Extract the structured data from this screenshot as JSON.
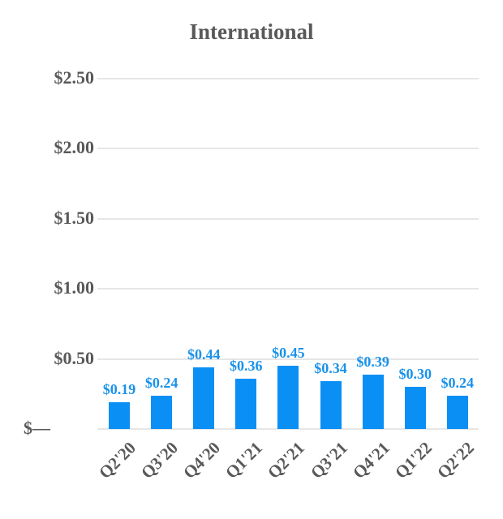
{
  "chart_data": {
    "type": "bar",
    "title": "International",
    "xlabel": "",
    "ylabel": "",
    "categories": [
      "Q2'20",
      "Q3'20",
      "Q4'20",
      "Q1'21",
      "Q2'21",
      "Q3'21",
      "Q4'21",
      "Q1'22",
      "Q2'22"
    ],
    "values": [
      0.19,
      0.24,
      0.44,
      0.36,
      0.45,
      0.34,
      0.39,
      0.3,
      0.24
    ],
    "data_labels": [
      "$0.19",
      "$0.24",
      "$0.44",
      "$0.36",
      "$0.45",
      "$0.34",
      "$0.39",
      "$0.30",
      "$0.24"
    ],
    "y_ticks": [
      "$—",
      "$0.50",
      "$1.00",
      "$1.50",
      "$2.00",
      "$2.50"
    ],
    "y_tick_values": [
      0,
      0.5,
      1.0,
      1.5,
      2.0,
      2.5
    ],
    "ylim": [
      0,
      2.5
    ],
    "grid": true,
    "legend": null,
    "colors": {
      "bar": "#0a8ff5",
      "data_label": "#1a92ea",
      "axis_text": "#595959",
      "grid": "#e6e6e6"
    }
  }
}
